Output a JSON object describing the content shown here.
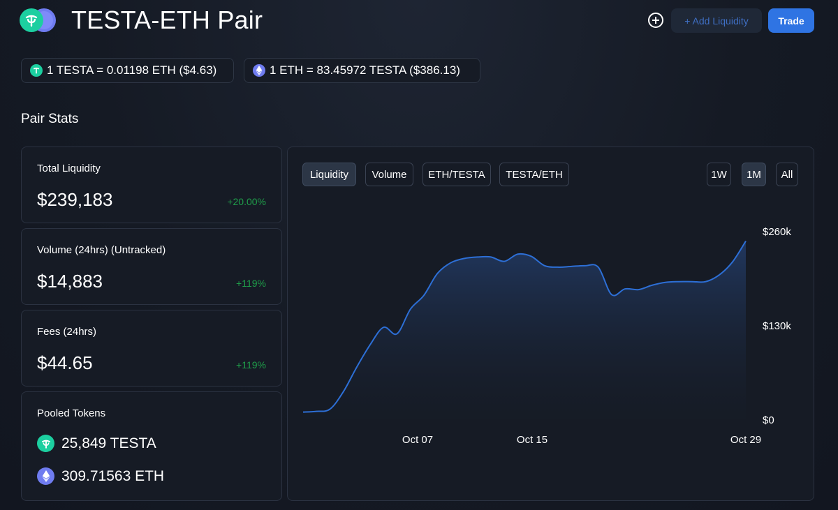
{
  "header": {
    "title": "TESTA-ETH Pair",
    "add_liquidity_label": "+ Add Liquidity",
    "trade_label": "Trade",
    "plus_icon": "plus-circle-icon"
  },
  "rates": [
    {
      "text": "1 TESTA = 0.01198 ETH ($4.63)",
      "icon": "testa-icon"
    },
    {
      "text": "1 ETH = 83.45972 TESTA ($386.13)",
      "icon": "eth-icon"
    }
  ],
  "section_title": "Pair Stats",
  "stats": {
    "liquidity": {
      "label": "Total Liquidity",
      "value": "$239,183",
      "change": "+20.00%"
    },
    "volume": {
      "label": "Volume (24hrs) (Untracked)",
      "value": "$14,883",
      "change": "+119%"
    },
    "fees": {
      "label": "Fees (24hrs)",
      "value": "$44.65",
      "change": "+119%"
    },
    "pooled": {
      "label": "Pooled Tokens",
      "testa": "25,849 TESTA",
      "eth": "309.71563 ETH"
    }
  },
  "chart_tabs": {
    "metrics": [
      "Liquidity",
      "Volume",
      "ETH/TESTA",
      "TESTA/ETH"
    ],
    "active_metric": "Liquidity",
    "ranges": [
      "1W",
      "1M",
      "All"
    ],
    "active_range": "1M"
  },
  "colors": {
    "accent": "#2f74e3",
    "positive": "#1f9e4a",
    "testa": "#1ccfa0",
    "eth": "#6f7cf0",
    "line": "#2d6fd6"
  },
  "chart_data": {
    "type": "area",
    "title": "",
    "xlabel": "",
    "ylabel": "",
    "x_ticks": [
      "Oct 07",
      "Oct 15",
      "Oct 29"
    ],
    "y_ticks": [
      "$0",
      "$130k",
      "$260k"
    ],
    "ylim": [
      0,
      260000
    ],
    "x": [
      0,
      1,
      2,
      3,
      4,
      5,
      6,
      7,
      8,
      9,
      10,
      11,
      12,
      13,
      14,
      15,
      16,
      17,
      18,
      19,
      20,
      21,
      22,
      23,
      24,
      25,
      26,
      27,
      28,
      29,
      30,
      31,
      32,
      33
    ],
    "series": [
      {
        "values": [
          10000,
          11000,
          14000,
          38000,
          72000,
          103000,
          127000,
          118000,
          152000,
          171000,
          201000,
          216000,
          222000,
          224000,
          224000,
          218000,
          228000,
          225000,
          212000,
          210000,
          211000,
          212000,
          210000,
          172000,
          180000,
          179000,
          185000,
          189000,
          190000,
          190000,
          190000,
          199000,
          217000,
          246000
        ]
      }
    ]
  }
}
